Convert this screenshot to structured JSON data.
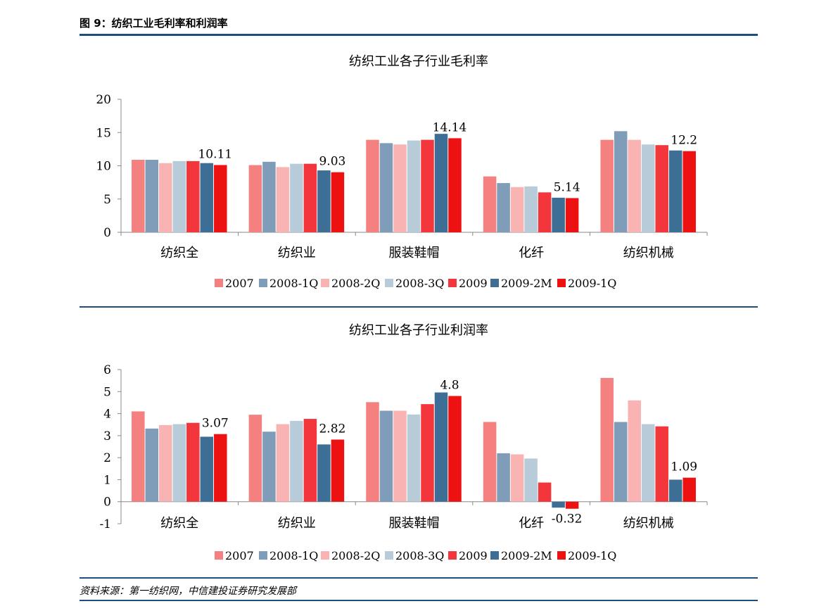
{
  "figure_title": "图 9：纺织工业毛利率和利润率",
  "source": "资料来源：第一纺织网，中信建投证券研究发展部",
  "series_colors": [
    "#f48080",
    "#7f9db9",
    "#f9b3b3",
    "#b7cbd9",
    "#f2363b",
    "#3c6e96",
    "#ee1111"
  ],
  "chart_data": [
    {
      "type": "bar",
      "title": "纺织工业各子行业毛利率",
      "categories": [
        "纺织全",
        "纺织业",
        "服装鞋帽",
        "化纤",
        "纺织机械"
      ],
      "ylim": [
        0,
        20
      ],
      "yticks": [
        "0",
        "5",
        "10",
        "15",
        "20"
      ],
      "grid": false,
      "legend": "bottom",
      "series": [
        {
          "name": "2007",
          "values": [
            10.9,
            10.1,
            13.9,
            8.4,
            13.9
          ]
        },
        {
          "name": "2008-1Q",
          "values": [
            10.9,
            10.6,
            13.4,
            7.4,
            15.2
          ]
        },
        {
          "name": "2008-2Q",
          "values": [
            10.4,
            9.8,
            13.2,
            6.8,
            13.9
          ]
        },
        {
          "name": "2008-3Q",
          "values": [
            10.7,
            10.3,
            13.8,
            6.9,
            13.2
          ]
        },
        {
          "name": "2009",
          "values": [
            10.7,
            10.3,
            13.9,
            6.0,
            13.1
          ]
        },
        {
          "name": "2009-2M",
          "values": [
            10.4,
            9.3,
            14.8,
            5.2,
            12.3
          ]
        },
        {
          "name": "2009-1Q",
          "values": [
            10.11,
            9.03,
            14.14,
            5.14,
            12.2
          ]
        }
      ],
      "data_labels": [
        "10.11",
        "9.03",
        "14.14",
        "5.14",
        "12.2"
      ]
    },
    {
      "type": "bar",
      "title": "纺织工业各子行业利润率",
      "categories": [
        "纺织全",
        "纺织业",
        "服装鞋帽",
        "化纤",
        "纺织机械"
      ],
      "ylim": [
        -1,
        6
      ],
      "yticks": [
        "-1",
        "0",
        "1",
        "2",
        "3",
        "4",
        "5",
        "6"
      ],
      "grid": false,
      "legend": "bottom",
      "series": [
        {
          "name": "2007",
          "values": [
            4.1,
            3.95,
            4.52,
            3.62,
            5.62
          ]
        },
        {
          "name": "2008-1Q",
          "values": [
            3.32,
            3.18,
            4.13,
            2.2,
            3.62
          ]
        },
        {
          "name": "2008-2Q",
          "values": [
            3.48,
            3.52,
            4.13,
            2.15,
            4.6
          ]
        },
        {
          "name": "2008-3Q",
          "values": [
            3.52,
            3.67,
            3.96,
            1.96,
            3.52
          ]
        },
        {
          "name": "2009",
          "values": [
            3.58,
            3.76,
            4.43,
            0.87,
            3.42
          ]
        },
        {
          "name": "2009-2M",
          "values": [
            2.95,
            2.6,
            4.96,
            -0.27,
            1.0
          ]
        },
        {
          "name": "2009-1Q",
          "values": [
            3.07,
            2.82,
            4.8,
            -0.32,
            1.09
          ]
        }
      ],
      "data_labels": [
        "3.07",
        "2.82",
        "4.8",
        "-0.32",
        "1.09"
      ]
    }
  ]
}
